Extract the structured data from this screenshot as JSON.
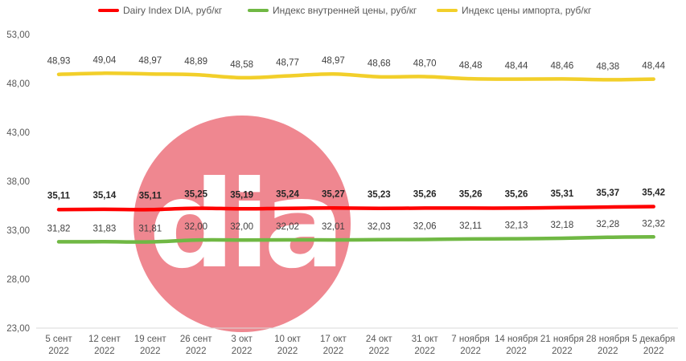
{
  "chart_data": {
    "type": "line",
    "title": "",
    "xlabel": "",
    "ylabel": "",
    "ylim": [
      23,
      53
    ],
    "yticks": [
      "23,00",
      "28,00",
      "33,00",
      "38,00",
      "43,00",
      "48,00",
      "53,00"
    ],
    "grid": false,
    "legend_position": "top",
    "categories": [
      [
        "5 сент",
        "2022"
      ],
      [
        "12 сент",
        "2022"
      ],
      [
        "19 сент",
        "2022"
      ],
      [
        "26 сент",
        "2022"
      ],
      [
        "3 окт",
        "2022"
      ],
      [
        "10 окт",
        "2022"
      ],
      [
        "17 окт",
        "2022"
      ],
      [
        "24 окт",
        "2022"
      ],
      [
        "31 окт",
        "2022"
      ],
      [
        "7 ноября",
        "2022"
      ],
      [
        "14 ноября",
        "2022"
      ],
      [
        "21 ноября",
        "2022"
      ],
      [
        "28 ноября",
        "2022"
      ],
      [
        "5 декабря",
        "2022"
      ]
    ],
    "series": [
      {
        "name": "Dairy Index DIA,  руб/кг",
        "color": "#ff0000",
        "bold_labels": true,
        "values": [
          35.11,
          35.14,
          35.11,
          35.25,
          35.19,
          35.24,
          35.27,
          35.23,
          35.26,
          35.26,
          35.26,
          35.31,
          35.37,
          35.42
        ],
        "labels": [
          "35,11",
          "35,14",
          "35,11",
          "35,25",
          "35,19",
          "35,24",
          "35,27",
          "35,23",
          "35,26",
          "35,26",
          "35,26",
          "35,31",
          "35,37",
          "35,42"
        ]
      },
      {
        "name": "Индекс внутренней цены, руб/кг",
        "color": "#70b844",
        "bold_labels": false,
        "values": [
          31.82,
          31.83,
          31.81,
          32.0,
          32.0,
          32.02,
          32.01,
          32.03,
          32.06,
          32.11,
          32.13,
          32.18,
          32.28,
          32.32
        ],
        "labels": [
          "31,82",
          "31,83",
          "31,81",
          "32,00",
          "32,00",
          "32,02",
          "32,01",
          "32,03",
          "32,06",
          "32,11",
          "32,13",
          "32,18",
          "32,28",
          "32,32"
        ]
      },
      {
        "name": "Индекс цены импорта, руб/кг",
        "color": "#f2cf2a",
        "bold_labels": false,
        "values": [
          48.93,
          49.04,
          48.97,
          48.89,
          48.58,
          48.77,
          48.97,
          48.68,
          48.7,
          48.48,
          48.44,
          48.46,
          48.38,
          48.44
        ],
        "labels": [
          "48,93",
          "49,04",
          "48,97",
          "48,89",
          "48,58",
          "48,77",
          "48,97",
          "48,68",
          "48,70",
          "48,48",
          "48,44",
          "48,46",
          "48,38",
          "48,44"
        ]
      }
    ],
    "watermark": {
      "text": "dia",
      "circle_color": "#ef8790",
      "letter_color": "#ffffff"
    }
  }
}
